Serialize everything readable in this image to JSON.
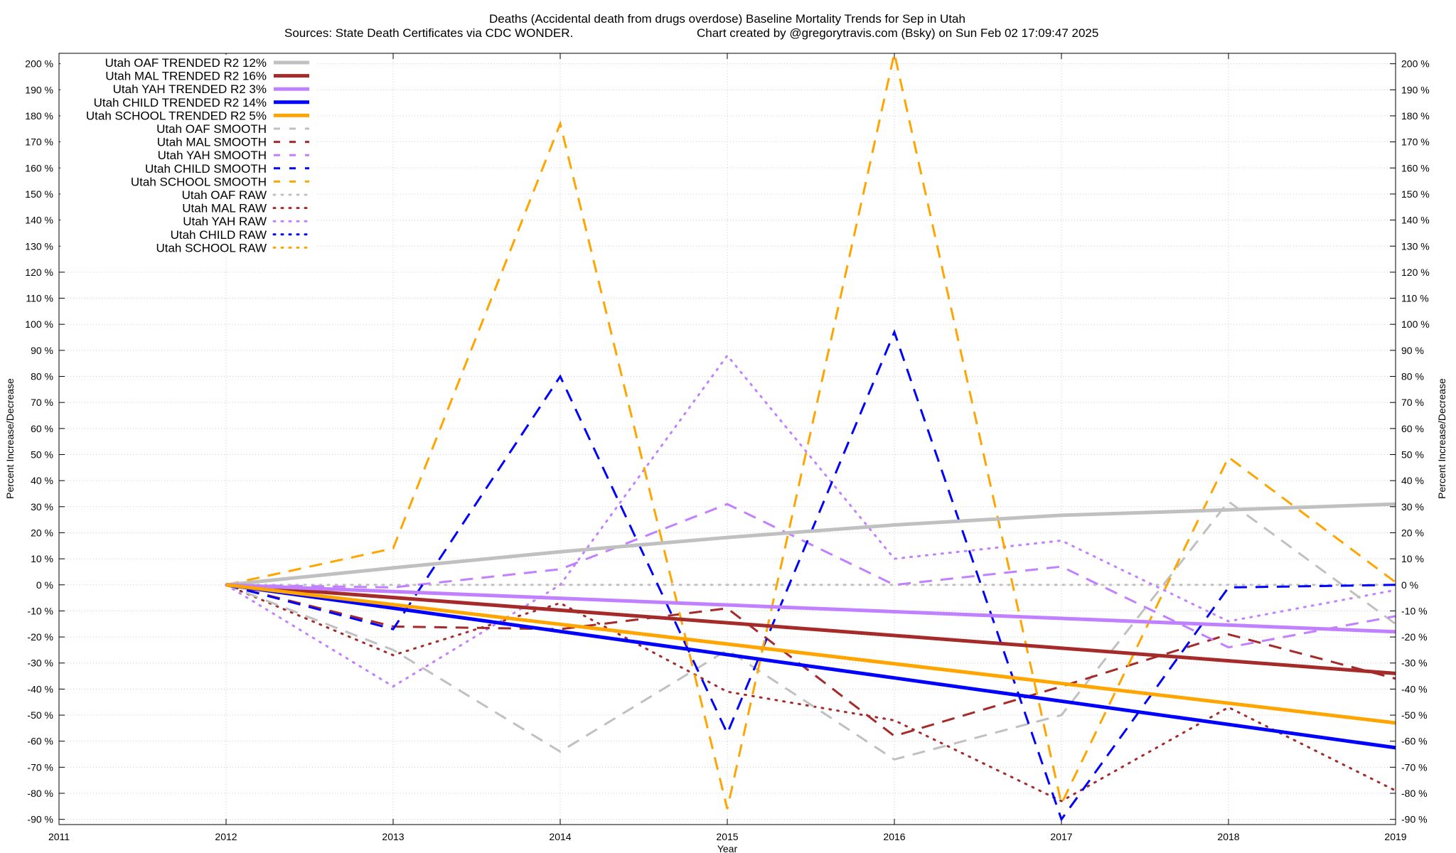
{
  "chart_data": {
    "type": "line",
    "title_line1": "Deaths (Accidental death from drugs overdose)  Baseline Mortality Trends for Sep in Utah",
    "title_line2_left": "Sources: State Death Certificates via CDC WONDER.",
    "title_line2_right": "Chart created by @gregorytravis.com (Bsky) on Sun Feb 02 17:09:47 2025",
    "xlabel": "Year",
    "ylabel_left": "Percent Increase/Decrease",
    "ylabel_right": "Percent Increase/Decrease",
    "xlim": [
      2011,
      2019
    ],
    "ylim": [
      -92,
      204
    ],
    "x_ticks": [
      2011,
      2012,
      2013,
      2014,
      2015,
      2016,
      2017,
      2018,
      2019
    ],
    "y_ticks": [
      -90,
      -80,
      -70,
      -60,
      -50,
      -40,
      -30,
      -20,
      -10,
      0,
      10,
      20,
      30,
      40,
      50,
      60,
      70,
      80,
      90,
      100,
      110,
      120,
      130,
      140,
      150,
      160,
      170,
      180,
      190,
      200
    ],
    "y_tick_suffix": " %",
    "grid": true,
    "legend_position": "top-left",
    "series": [
      {
        "name": "Utah OAF TRENDED R2  12%",
        "style": "trend",
        "color": "#c0c0c0",
        "x": [
          2012,
          2013,
          2014,
          2015,
          2016,
          2017,
          2018,
          2019
        ],
        "values": [
          0,
          6.5,
          12.7,
          18.2,
          23.0,
          26.7,
          28.8,
          31.0
        ]
      },
      {
        "name": "Utah MAL TRENDED R2  16%",
        "style": "trend",
        "color": "#a52a2a",
        "x": [
          2012,
          2019
        ],
        "values": [
          0,
          -34
        ]
      },
      {
        "name": "Utah YAH TRENDED R2   3%",
        "style": "trend",
        "color": "#c080ff",
        "x": [
          2012,
          2019
        ],
        "values": [
          0,
          -18
        ]
      },
      {
        "name": "Utah CHILD TRENDED R2  14%",
        "style": "trend",
        "color": "#0000ff",
        "x": [
          2012,
          2019
        ],
        "values": [
          0,
          -62.5
        ]
      },
      {
        "name": "Utah SCHOOL TRENDED R2   5%",
        "style": "trend",
        "color": "#ffa500",
        "x": [
          2012,
          2019
        ],
        "values": [
          0,
          -53
        ]
      },
      {
        "name": "Utah OAF SMOOTH",
        "style": "smooth",
        "color": "#c0c0c0",
        "x": [
          2012,
          2013,
          2014,
          2015,
          2016,
          2017,
          2018,
          2019
        ],
        "values": [
          0,
          -25,
          -64,
          -25,
          -67,
          -50,
          32,
          -15
        ]
      },
      {
        "name": "Utah MAL SMOOTH",
        "style": "smooth",
        "color": "#a52a2a",
        "x": [
          2012,
          2013,
          2014,
          2015,
          2016,
          2017,
          2018,
          2019
        ],
        "values": [
          0,
          -16,
          -17,
          -9,
          -58,
          -39,
          -19,
          -36
        ]
      },
      {
        "name": "Utah YAH SMOOTH",
        "style": "smooth",
        "color": "#c080ff",
        "x": [
          2012,
          2013,
          2014,
          2015,
          2016,
          2017,
          2018,
          2019
        ],
        "values": [
          0,
          -1,
          6,
          31,
          0,
          7,
          -24,
          -12
        ]
      },
      {
        "name": "Utah CHILD SMOOTH",
        "style": "smooth",
        "color": "#0000ff",
        "x": [
          2012,
          2013,
          2014,
          2015,
          2016,
          2017,
          2018,
          2019
        ],
        "values": [
          0,
          -17,
          80,
          -57,
          97,
          -90,
          -1,
          0
        ]
      },
      {
        "name": "Utah SCHOOL SMOOTH",
        "style": "smooth",
        "color": "#ffa500",
        "x": [
          2012,
          2013,
          2014,
          2015,
          2016,
          2017,
          2018,
          2019
        ],
        "values": [
          0,
          14,
          177,
          -86,
          204,
          -84,
          49,
          1
        ]
      },
      {
        "name": "Utah OAF RAW",
        "style": "raw",
        "color": "#c0c0c0",
        "x": [
          2012,
          2013,
          2014,
          2015,
          2016,
          2017,
          2018,
          2019
        ],
        "values": [
          0,
          0,
          0,
          0,
          0,
          0,
          0,
          0
        ]
      },
      {
        "name": "Utah MAL RAW",
        "style": "raw",
        "color": "#a52a2a",
        "x": [
          2012,
          2013,
          2014,
          2015,
          2016,
          2017,
          2018,
          2019
        ],
        "values": [
          0,
          -27,
          -7,
          -41,
          -52,
          -83,
          -47,
          -79
        ]
      },
      {
        "name": "Utah YAH RAW",
        "style": "raw",
        "color": "#c080ff",
        "x": [
          2012,
          2013,
          2014,
          2015,
          2016,
          2017,
          2018,
          2019
        ],
        "values": [
          0,
          -39,
          0,
          88,
          10,
          17,
          -14,
          -2
        ]
      },
      {
        "name": "Utah CHILD RAW",
        "style": "raw",
        "color": "#0000ff",
        "x": [],
        "values": []
      },
      {
        "name": "Utah SCHOOL RAW",
        "style": "raw",
        "color": "#ffa500",
        "x": [],
        "values": []
      }
    ]
  }
}
